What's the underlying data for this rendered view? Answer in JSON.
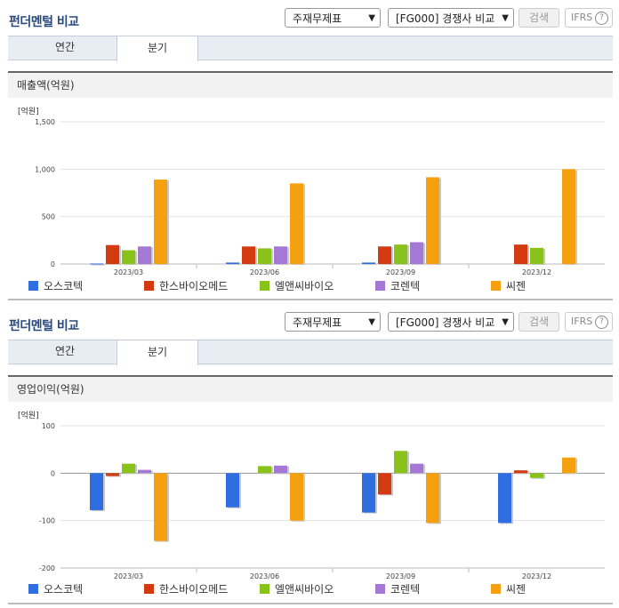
{
  "panels": [
    {
      "title": "펀더멘털 비교",
      "statement_select": "주재무제표",
      "compare_select": "[FG000] 경쟁사 비교",
      "search_label": "검색",
      "ifrs_label": "IFRS",
      "help_glyph": "?",
      "tabs": [
        "연간",
        "분기"
      ],
      "active_tab": "분기",
      "section_title": "매출액(억원)",
      "unit_label": "[억원]"
    },
    {
      "title": "펀더멘털 비교",
      "statement_select": "주재무제표",
      "compare_select": "[FG000] 경쟁사 비교",
      "search_label": "검색",
      "ifrs_label": "IFRS",
      "help_glyph": "?",
      "tabs": [
        "연간",
        "분기"
      ],
      "active_tab": "분기",
      "section_title": "영업이익(억원)",
      "unit_label": "[억원]"
    }
  ],
  "colors": {
    "오스코텍": "#2f6ee0",
    "한스바이오메드": "#d43a0f",
    "엘앤씨바이오": "#88c21b",
    "코렌텍": "#a678d6",
    "씨젠": "#f5a00f"
  },
  "chart_data": [
    {
      "type": "bar",
      "title": "매출액(억원)",
      "ylabel": "[억원]",
      "categories": [
        "2023/03",
        "2023/06",
        "2023/09",
        "2023/12"
      ],
      "ylim": [
        0,
        1500
      ],
      "yticks": [
        0,
        500,
        1000,
        1500
      ],
      "ytick_labels": [
        "0",
        "500",
        "1,000",
        "1,500"
      ],
      "grid": true,
      "legend": "bottom",
      "series": [
        {
          "name": "오스코텍",
          "values": [
            5,
            15,
            15,
            null
          ]
        },
        {
          "name": "한스바이오메드",
          "values": [
            200,
            185,
            185,
            205
          ]
        },
        {
          "name": "엘앤씨바이오",
          "values": [
            145,
            165,
            205,
            170
          ]
        },
        {
          "name": "코렌텍",
          "values": [
            185,
            185,
            230,
            null
          ]
        },
        {
          "name": "씨젠",
          "values": [
            890,
            850,
            915,
            1000
          ]
        }
      ]
    },
    {
      "type": "bar",
      "title": "영업이익(억원)",
      "ylabel": "[억원]",
      "categories": [
        "2023/03",
        "2023/06",
        "2023/09",
        "2023/12"
      ],
      "ylim": [
        -200,
        100
      ],
      "yticks": [
        -200,
        -100,
        0,
        100
      ],
      "ytick_labels": [
        "-200",
        "-100",
        "0",
        "100"
      ],
      "grid": true,
      "legend": "bottom",
      "series": [
        {
          "name": "오스코텍",
          "values": [
            -78,
            -72,
            -83,
            -105
          ]
        },
        {
          "name": "한스바이오메드",
          "values": [
            -6,
            null,
            -45,
            6
          ]
        },
        {
          "name": "엘앤씨바이오",
          "values": [
            20,
            15,
            47,
            -10
          ]
        },
        {
          "name": "코렌텍",
          "values": [
            7,
            16,
            20,
            null
          ]
        },
        {
          "name": "씨젠",
          "values": [
            -143,
            -100,
            -105,
            33
          ]
        }
      ]
    }
  ]
}
